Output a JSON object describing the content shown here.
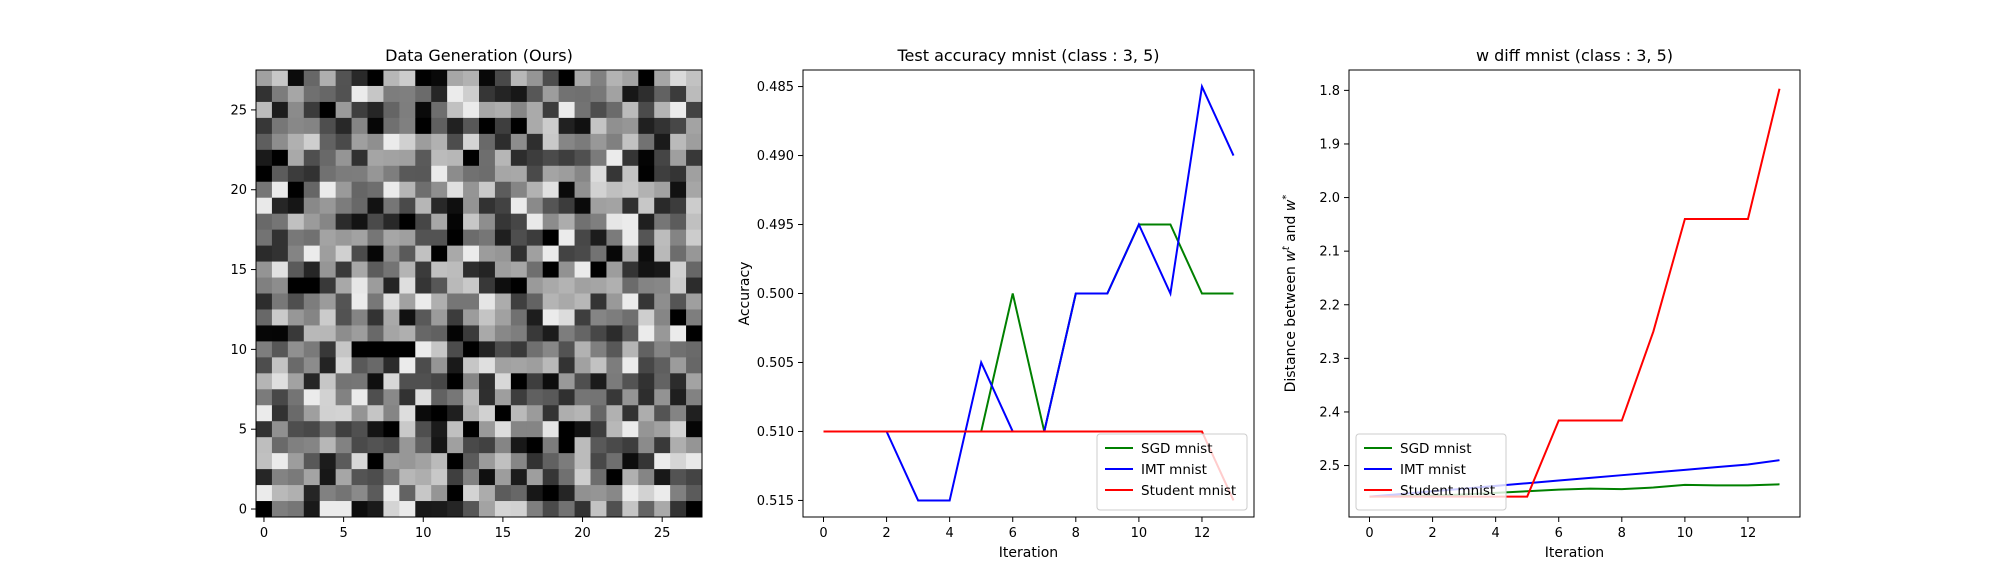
{
  "chart_data": [
    {
      "type": "heatmap",
      "title": "Data Generation (Ours)",
      "xlabel": "",
      "ylabel": "",
      "colormap": "gray",
      "rows": 28,
      "cols": 28,
      "xlim": [
        -0.5,
        27.5
      ],
      "ylim": [
        27.5,
        -0.5
      ],
      "xticks": [
        0,
        5,
        10,
        15,
        20,
        25
      ],
      "yticks": [
        0,
        5,
        10,
        15,
        20,
        25
      ]
    },
    {
      "type": "line",
      "title": "Test accuracy mnist (class : 3, 5)",
      "xlabel": "Iteration",
      "ylabel": "Accuracy",
      "xlim": [
        -0.65,
        13.65
      ],
      "ylim": [
        0.4838,
        0.5162
      ],
      "xticks": [
        0,
        2,
        4,
        6,
        8,
        10,
        12
      ],
      "yticks": [
        0.485,
        0.49,
        0.495,
        0.5,
        0.505,
        0.51,
        0.515
      ],
      "ytick_format": 3,
      "legend": "lower-right",
      "x": [
        0,
        1,
        2,
        3,
        4,
        5,
        6,
        7,
        8,
        9,
        10,
        11,
        12,
        13
      ],
      "series": [
        {
          "name": "SGD mnist",
          "color": "#008000",
          "values": [
            0.51,
            0.51,
            0.51,
            0.51,
            0.51,
            0.51,
            0.5,
            0.51,
            0.5,
            0.5,
            0.495,
            0.495,
            0.5,
            0.5
          ]
        },
        {
          "name": "IMT mnist",
          "color": "#0000ff",
          "values": [
            0.51,
            0.51,
            0.51,
            0.515,
            0.515,
            0.505,
            0.51,
            0.51,
            0.5,
            0.5,
            0.495,
            0.5,
            0.485,
            0.49
          ]
        },
        {
          "name": "Student mnist",
          "color": "#ff0000",
          "values": [
            0.51,
            0.51,
            0.51,
            0.51,
            0.51,
            0.51,
            0.51,
            0.51,
            0.51,
            0.51,
            0.51,
            0.51,
            0.51,
            0.515
          ]
        }
      ]
    },
    {
      "type": "line",
      "title": "w diff mnist (class : 3, 5)",
      "xlabel": "Iteration",
      "ylabel": "Distance between w^t and w^*",
      "ylabel_parts": {
        "prefix": "Distance between ",
        "w1": "w",
        "sup1": "t",
        "mid": " and ",
        "w2": "w",
        "sup2": "*"
      },
      "xlim": [
        -0.65,
        13.65
      ],
      "ylim": [
        1.762,
        2.596
      ],
      "xticks": [
        0,
        2,
        4,
        6,
        8,
        10,
        12
      ],
      "yticks": [
        1.8,
        1.9,
        2.0,
        2.1,
        2.2,
        2.3,
        2.4,
        2.5
      ],
      "ytick_format": 1,
      "legend": "lower-left",
      "x": [
        0,
        1,
        2,
        3,
        4,
        5,
        6,
        7,
        8,
        9,
        10,
        11,
        12,
        13
      ],
      "series": [
        {
          "name": "SGD mnist",
          "color": "#008000",
          "values": [
            2.558,
            2.557,
            2.556,
            2.554,
            2.551,
            2.548,
            2.545,
            2.543,
            2.544,
            2.541,
            2.536,
            2.537,
            2.537,
            2.535
          ]
        },
        {
          "name": "IMT mnist",
          "color": "#0000ff",
          "values": [
            2.558,
            2.553,
            2.548,
            2.543,
            2.538,
            2.533,
            2.528,
            2.523,
            2.518,
            2.513,
            2.508,
            2.503,
            2.498,
            2.49
          ]
        },
        {
          "name": "Student mnist",
          "color": "#ff0000",
          "values": [
            2.558,
            2.558,
            2.558,
            2.558,
            2.558,
            2.558,
            2.416,
            2.416,
            2.416,
            2.25,
            2.04,
            2.04,
            2.04,
            1.797
          ]
        }
      ]
    }
  ]
}
